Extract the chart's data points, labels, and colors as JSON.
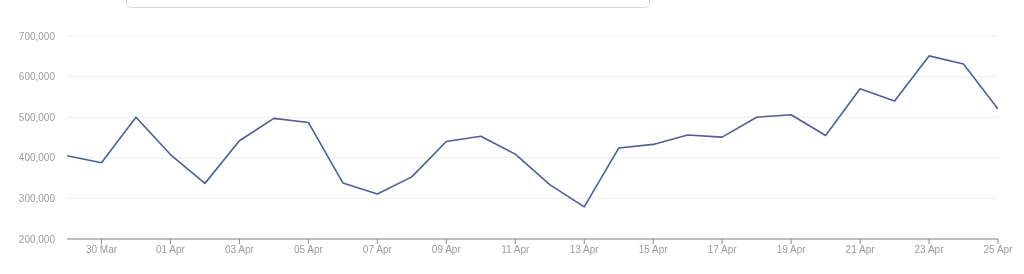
{
  "chart_data": {
    "type": "line",
    "x": [
      "--03-29",
      "--03-30",
      "--03-31",
      "--04-01",
      "--04-02",
      "--04-03",
      "--04-04",
      "--04-05",
      "--04-06",
      "--04-07",
      "--04-08",
      "--04-09",
      "--04-10",
      "--04-11",
      "--04-12",
      "--04-13",
      "--04-14",
      "--04-15",
      "--04-16",
      "--04-17",
      "--04-18",
      "--04-19",
      "--04-20",
      "--04-21",
      "--04-22",
      "--04-23",
      "--04-24",
      "--04-25"
    ],
    "series": [
      {
        "color": "#4f5e96",
        "values": [
          405000,
          388000,
          500000,
          408000,
          337000,
          442000,
          497000,
          487000,
          338000,
          311000,
          353000,
          440000,
          453000,
          409000,
          334000,
          279000,
          424000,
          433000,
          456000,
          451000,
          500000,
          506000,
          455000,
          570000,
          540000,
          651000,
          631000,
          520000
        ]
      }
    ],
    "xlim": [
      "--03-29",
      "--04-25"
    ],
    "xticks": [
      {
        "value": "--03-30",
        "label": "30 Mar"
      },
      {
        "value": "--04-01",
        "label": "01 Apr"
      },
      {
        "value": "--04-03",
        "label": "03 Apr"
      },
      {
        "value": "--04-05",
        "label": "05 Apr"
      },
      {
        "value": "--04-07",
        "label": "07 Apr"
      },
      {
        "value": "--04-09",
        "label": "09 Apr"
      },
      {
        "value": "--04-11",
        "label": "11 Apr"
      },
      {
        "value": "--04-13",
        "label": "13 Apr"
      },
      {
        "value": "--04-15",
        "label": "15 Apr"
      },
      {
        "value": "--04-17",
        "label": "17 Apr"
      },
      {
        "value": "--04-19",
        "label": "19 Apr"
      },
      {
        "value": "--04-21",
        "label": "21 Apr"
      },
      {
        "value": "--04-23",
        "label": "23 Apr"
      },
      {
        "value": "--04-25",
        "label": "25 Apr"
      }
    ],
    "ylim": [
      200000,
      700000
    ],
    "yticks": [
      {
        "value": 200000,
        "label": "200,000"
      },
      {
        "value": 300000,
        "label": "300,000"
      },
      {
        "value": 400000,
        "label": "400,000"
      },
      {
        "value": 500000,
        "label": "500,000"
      },
      {
        "value": 600000,
        "label": "600,000"
      },
      {
        "value": 700000,
        "label": "700,000"
      }
    ],
    "grid": "y",
    "legend": false,
    "marker": "none",
    "line_style": "solid"
  }
}
